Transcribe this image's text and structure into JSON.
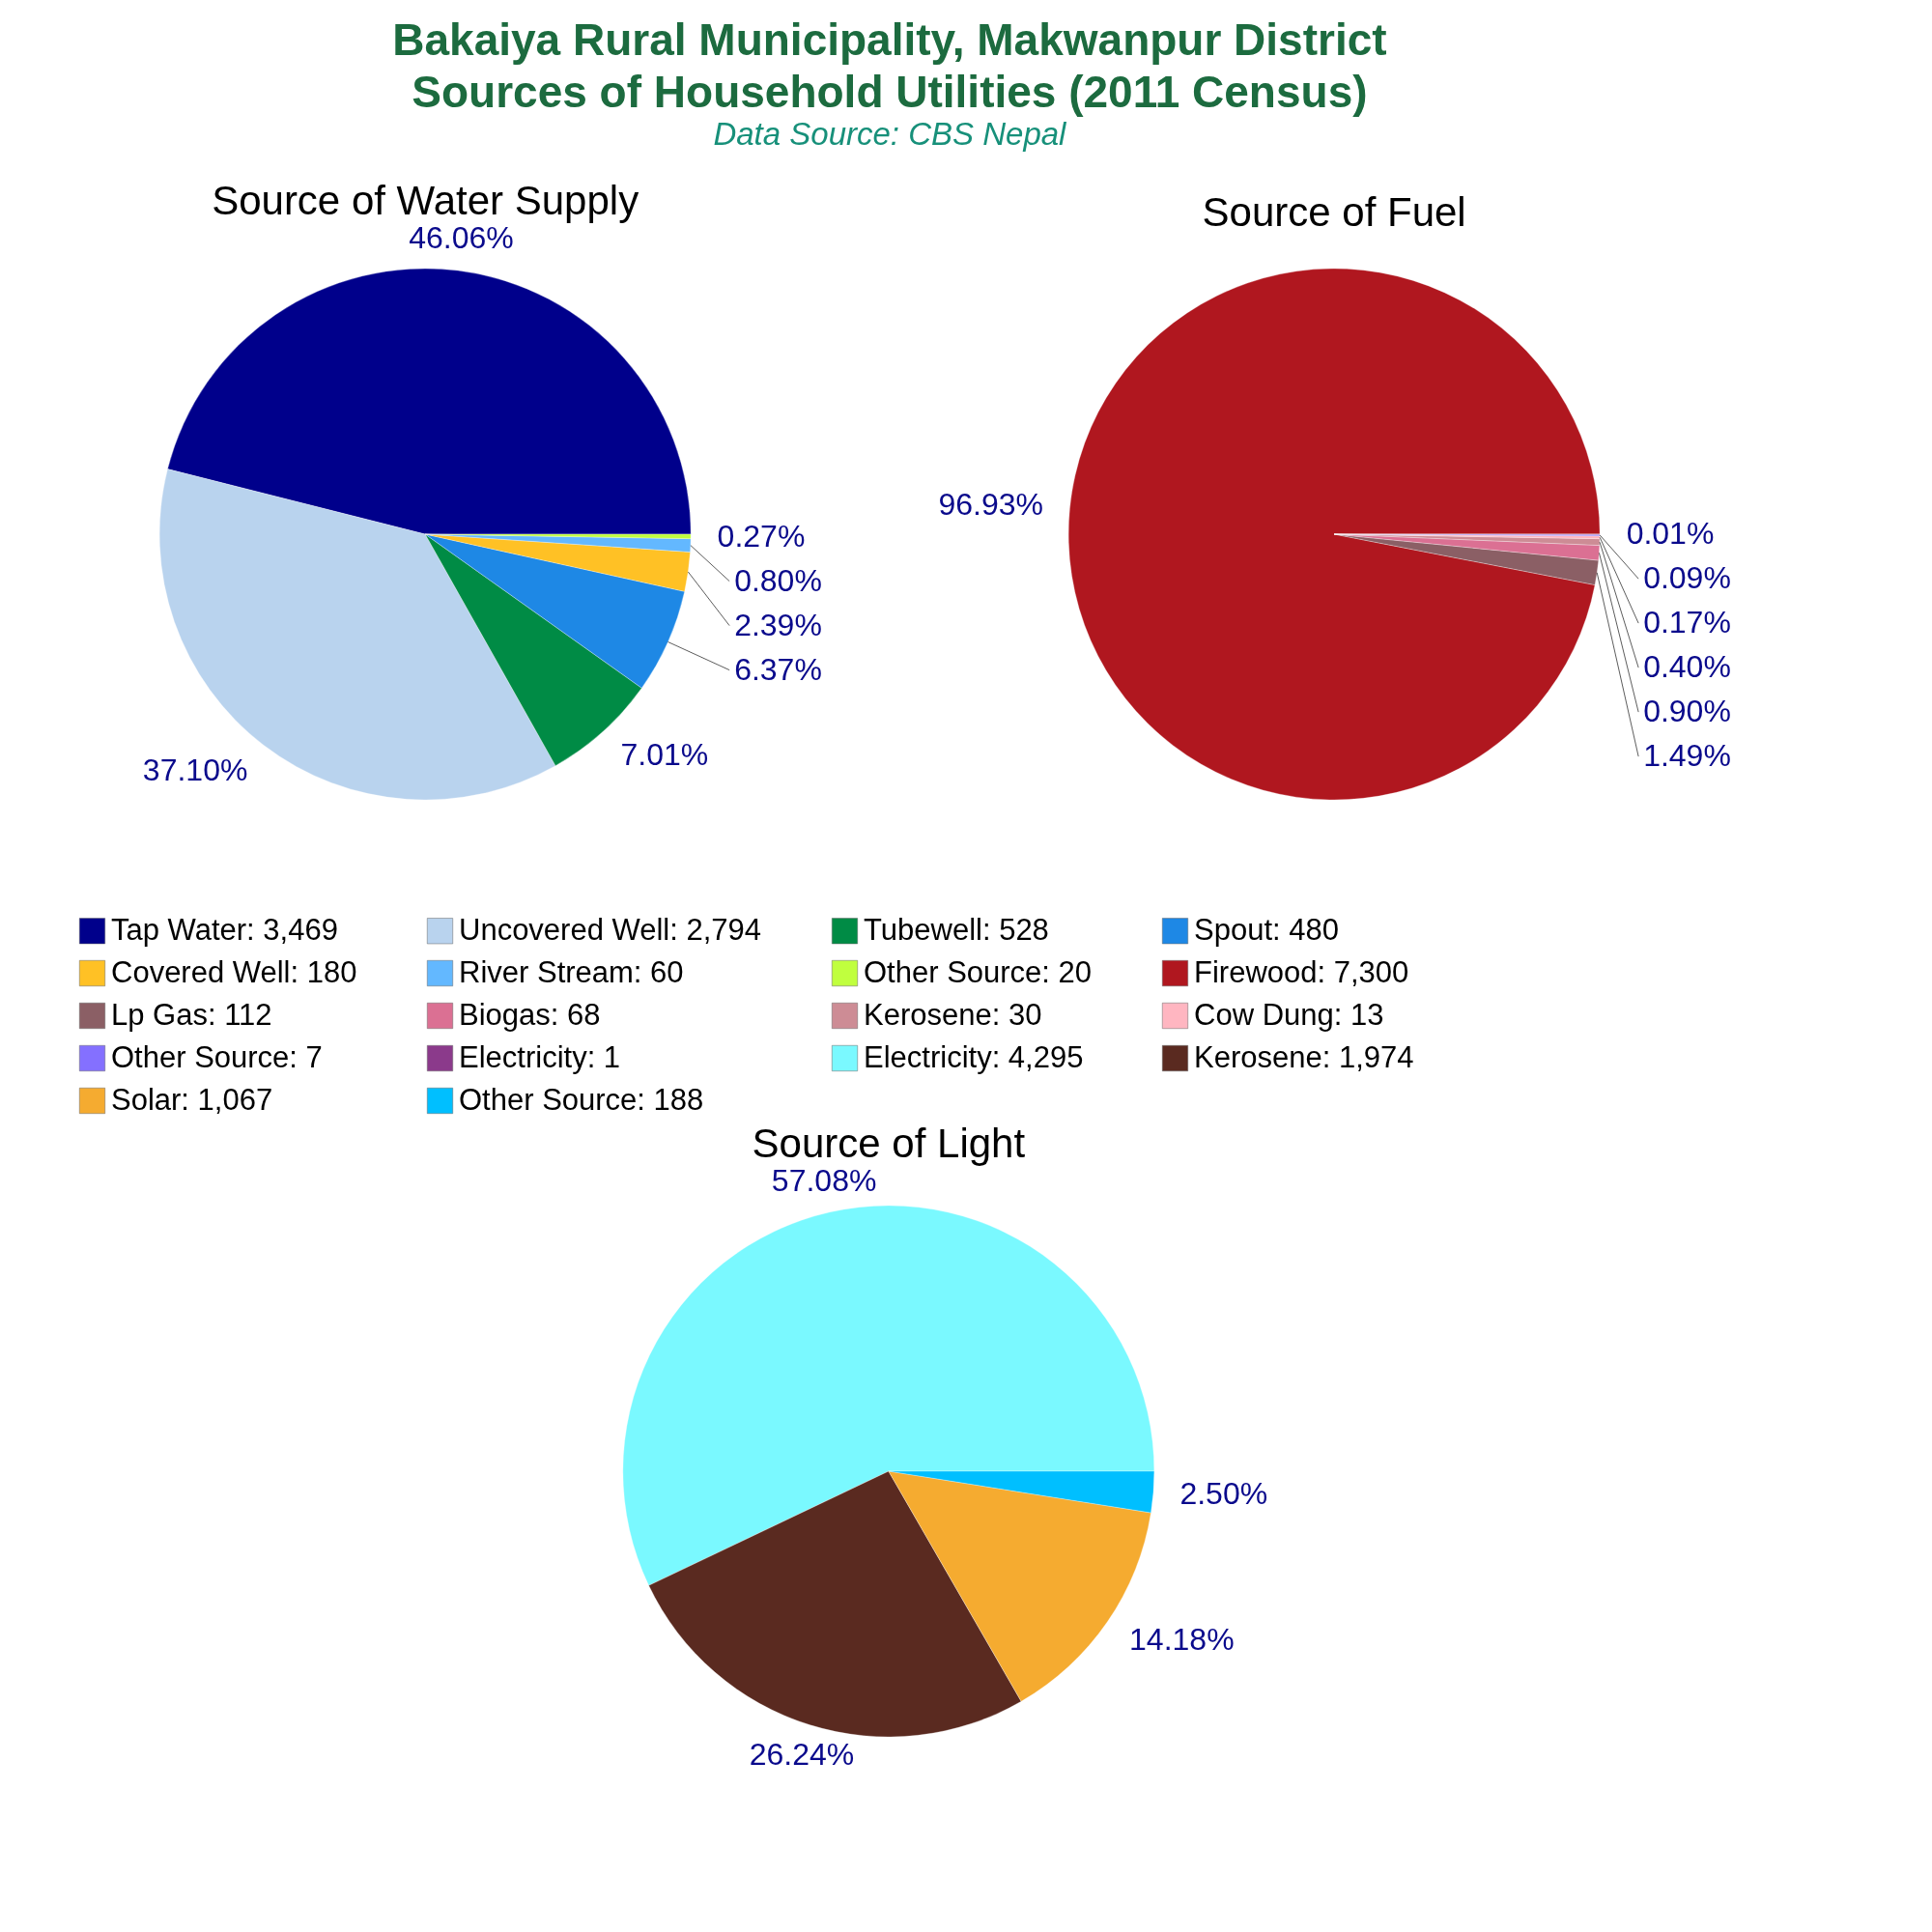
{
  "chart_data": [
    {
      "type": "other",
      "title": "Bakaiya Rural Municipality, Makwanpur District\nSources of Household Utilities (2011 Census)",
      "subtitle": "Data Source: CBS Nepal"
    },
    {
      "type": "pie",
      "title": "Source of Water Supply",
      "legend": "bottom",
      "categories": [
        "Tap Water: 3,469",
        "Uncovered Well: 2,794",
        "Tubewell: 528",
        "Spout: 480",
        "Covered Well: 180",
        "River Stream: 60",
        "Other Source: 20"
      ],
      "values": [
        46.06,
        37.1,
        7.01,
        6.37,
        2.39,
        0.8,
        0.27
      ],
      "colors": [
        "#00008b",
        "#b9d3ee",
        "#008b45",
        "#1e88e5",
        "#ffc125",
        "#63b8ff",
        "#c0ff3e"
      ],
      "value_labels": [
        "46.06%",
        "37.10%",
        "7.01%",
        "6.37%",
        "2.39%",
        "0.80%",
        "0.27%"
      ]
    },
    {
      "type": "pie",
      "title": "Source of Fuel",
      "legend": "bottom",
      "categories": [
        "Firewood: 7,300",
        "Lp Gas: 112",
        "Biogas: 68",
        "Kerosene: 30",
        "Cow Dung: 13",
        "Other Source: 7",
        "Electricity: 1"
      ],
      "values": [
        96.93,
        1.49,
        0.9,
        0.4,
        0.17,
        0.09,
        0.01
      ],
      "colors": [
        "#b0171f",
        "#8b5f65",
        "#db7093",
        "#cd8c95",
        "#ffb6c1",
        "#8470ff",
        "#8b3a8b"
      ],
      "value_labels": [
        "96.93%",
        "1.49%",
        "0.90%",
        "0.40%",
        "0.17%",
        "0.09%",
        "0.01%"
      ]
    },
    {
      "type": "pie",
      "title": "Source of Light",
      "legend": "top",
      "categories": [
        "Electricity: 4,295",
        "Kerosene: 1,974",
        "Solar: 1,067",
        "Other Source: 188"
      ],
      "values": [
        57.08,
        26.24,
        14.18,
        2.5
      ],
      "colors": [
        "#7af9ff",
        "#5a2a20",
        "#f5ab30",
        "#00bfff"
      ],
      "value_labels": [
        "57.08%",
        "26.24%",
        "14.18%",
        "2.50%"
      ]
    }
  ]
}
